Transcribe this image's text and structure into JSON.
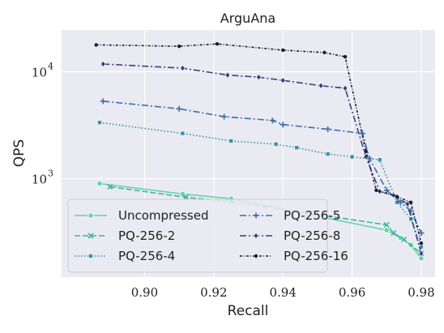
{
  "chart_data": {
    "type": "line",
    "title": "ArguAna",
    "xlabel": "Recall",
    "ylabel": "QPS",
    "xlim": [
      0.876,
      0.984
    ],
    "ylim_log10": [
      2.08,
      4.39
    ],
    "y_scale": "log",
    "grid": true,
    "legend_placement": "lower-left",
    "x_ticks": [
      {
        "value": 0.9,
        "label": "0.90"
      },
      {
        "value": 0.92,
        "label": "0.92"
      },
      {
        "value": 0.94,
        "label": "0.94"
      },
      {
        "value": 0.96,
        "label": "0.96"
      },
      {
        "value": 0.98,
        "label": "0.98"
      }
    ],
    "y_ticks": [
      {
        "value": 1000,
        "base": "10",
        "exp": "3"
      },
      {
        "value": 10000,
        "base": "10",
        "exp": "4"
      }
    ],
    "series": [
      {
        "name": "Uncompressed",
        "color": "#62d6a1",
        "dash": "solid",
        "marker": "circle",
        "points": [
          [
            0.887,
            900
          ],
          [
            0.911,
            720
          ],
          [
            0.925,
            650
          ],
          [
            0.97,
            330
          ],
          [
            0.974,
            280
          ],
          [
            0.977,
            240
          ],
          [
            0.98,
            180
          ]
        ]
      },
      {
        "name": "PQ-256-2",
        "color": "#3fb5a0",
        "dash": "dashed",
        "marker": "x",
        "points": [
          [
            0.89,
            840
          ],
          [
            0.912,
            670
          ],
          [
            0.925,
            610
          ],
          [
            0.97,
            370
          ],
          [
            0.972,
            310
          ],
          [
            0.975,
            270
          ],
          [
            0.98,
            200
          ]
        ]
      },
      {
        "name": "PQ-256-4",
        "color": "#3a93a8",
        "dash": "dotted",
        "marker": "square",
        "points": [
          [
            0.887,
            3350
          ],
          [
            0.911,
            2650
          ],
          [
            0.925,
            2250
          ],
          [
            0.938,
            2100
          ],
          [
            0.944,
            1950
          ],
          [
            0.953,
            1700
          ],
          [
            0.96,
            1600
          ],
          [
            0.968,
            1500
          ],
          [
            0.973,
            600
          ],
          [
            0.977,
            420
          ],
          [
            0.98,
            230
          ]
        ]
      },
      {
        "name": "PQ-256-5",
        "color": "#3b6ea8",
        "dash": "dashdot",
        "marker": "plus",
        "points": [
          [
            0.888,
            5300
          ],
          [
            0.91,
            4500
          ],
          [
            0.923,
            3800
          ],
          [
            0.937,
            3500
          ],
          [
            0.94,
            3200
          ],
          [
            0.953,
            2900
          ],
          [
            0.963,
            2650
          ],
          [
            0.965,
            1550
          ],
          [
            0.97,
            780
          ],
          [
            0.974,
            600
          ],
          [
            0.977,
            500
          ],
          [
            0.98,
            310
          ]
        ]
      },
      {
        "name": "PQ-256-8",
        "color": "#37417f",
        "dash": "dashdot",
        "marker": "diamond",
        "points": [
          [
            0.888,
            11800
          ],
          [
            0.911,
            10800
          ],
          [
            0.924,
            9300
          ],
          [
            0.933,
            8900
          ],
          [
            0.94,
            8300
          ],
          [
            0.951,
            7400
          ],
          [
            0.958,
            7000
          ],
          [
            0.964,
            1600
          ],
          [
            0.968,
            760
          ],
          [
            0.972,
            700
          ],
          [
            0.976,
            580
          ],
          [
            0.98,
            200
          ]
        ]
      },
      {
        "name": "PQ-256-16",
        "color": "#1d1b30",
        "dash": "dotdashdense",
        "marker": "dot",
        "points": [
          [
            0.886,
            17800
          ],
          [
            0.91,
            17300
          ],
          [
            0.921,
            18200
          ],
          [
            0.94,
            15900
          ],
          [
            0.952,
            15100
          ],
          [
            0.958,
            13800
          ],
          [
            0.964,
            1800
          ],
          [
            0.967,
            780
          ],
          [
            0.973,
            680
          ],
          [
            0.977,
            600
          ],
          [
            0.98,
            250
          ]
        ]
      }
    ]
  }
}
